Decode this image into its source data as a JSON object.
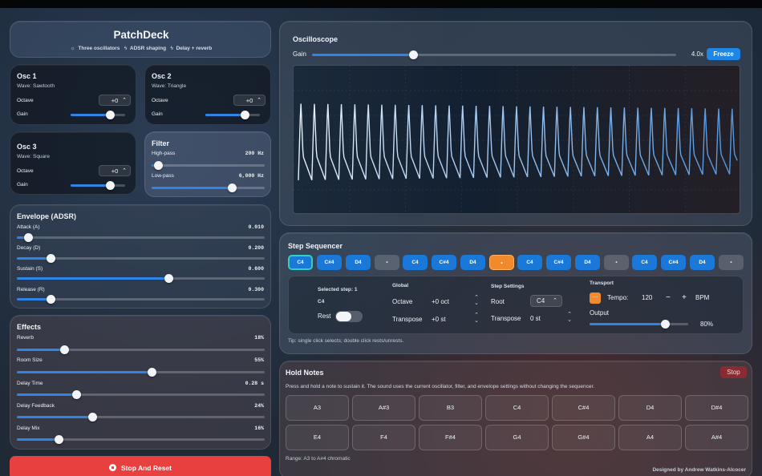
{
  "header": {
    "title": "PatchDeck",
    "features": [
      {
        "icon": "sun-icon",
        "label": "Three oscillators"
      },
      {
        "icon": "bolt-icon",
        "label": "ADSR shaping"
      },
      {
        "icon": "bolt-icon",
        "label": "Delay + reverb"
      }
    ]
  },
  "osc1": {
    "title": "Osc 1",
    "wave": "Wave: Sawtooth",
    "octave_label": "Octave",
    "octave": "+0",
    "gain_label": "Gain",
    "gain": 0.7
  },
  "osc2": {
    "title": "Osc 2",
    "wave": "Wave: Triangle",
    "octave_label": "Octave",
    "octave": "+0",
    "gain_label": "Gain",
    "gain": 0.7
  },
  "osc3": {
    "title": "Osc 3",
    "wave": "Wave: Square",
    "octave_label": "Octave",
    "octave": "+0",
    "gain_label": "Gain",
    "gain": 0.7
  },
  "filter": {
    "title": "Filter",
    "highpass_label": "High-pass",
    "highpass": "200 Hz",
    "highpass_level": 0.06,
    "lowpass_label": "Low-pass",
    "lowpass": "6,000 Hz",
    "lowpass_level": 0.71
  },
  "envelope": {
    "title": "Envelope (ADSR)",
    "attack_label": "Attack (A)",
    "attack": "0.010",
    "attack_level": 0.05,
    "decay_label": "Decay (D)",
    "decay": "0.200",
    "decay_level": 0.11,
    "sustain_label": "Sustain (S)",
    "sustain": "0.600",
    "sustain_level": 0.59,
    "release_label": "Release (R)",
    "release": "0.300",
    "release_level": 0.11
  },
  "effects": {
    "title": "Effects",
    "reverb_label": "Reverb",
    "reverb": "18%",
    "reverb_level": 0.19,
    "roomsize_label": "Room Size",
    "roomsize": "55%",
    "roomsize_level": 0.55,
    "delaytime_label": "Delay Time",
    "delaytime": "0.28 s",
    "delaytime_level": 0.24,
    "feedback_label": "Delay Feedback",
    "feedback": "24%",
    "feedback_level": 0.31,
    "mix_label": "Delay Mix",
    "mix": "16%",
    "mix_level": 0.17
  },
  "stop_reset": "Stop And Reset",
  "oscilloscope": {
    "title": "Oscilloscope",
    "gain_label": "Gain",
    "gain": "4.0x",
    "gain_level": 0.28,
    "freeze": "Freeze"
  },
  "sequencer": {
    "title": "Step Sequencer",
    "steps": [
      "C4",
      "C#4",
      "D4",
      "•",
      "C4",
      "C#4",
      "D4",
      "•",
      "C4",
      "C#4",
      "D4",
      "•",
      "C4",
      "C#4",
      "D4",
      "•"
    ],
    "selected_title": "Selected step: 1",
    "selected_note": "C4",
    "rest_label": "Rest",
    "global_title": "Global",
    "octave_label": "Octave",
    "octave": "+0 oct",
    "transpose_label": "Transpose",
    "transpose": "+0 st",
    "settings_title": "Step Settings",
    "root_label": "Root",
    "root": "C4",
    "step_transpose_label": "Transpose",
    "step_transpose": "0 st",
    "transport_title": "Transport",
    "play_icon": "…",
    "tempo_label": "Tempo:",
    "tempo": "120",
    "bpm": "BPM",
    "minus": "−",
    "plus": "+",
    "output_label": "Output",
    "output": "80%",
    "output_level": 0.8,
    "tip": "Tip: single click selects; double click rests/unrests."
  },
  "hold": {
    "title": "Hold Notes",
    "stop": "Stop",
    "description": "Press and hold a note to sustain it. The sound uses the current oscillator, filter, and envelope settings without changing the sequencer.",
    "keys": [
      "A3",
      "A#3",
      "B3",
      "C4",
      "C#4",
      "D4",
      "D#4",
      "E4",
      "F4",
      "F#4",
      "G4",
      "G#4",
      "A4",
      "A#4"
    ],
    "range": "Range: A3 to A#4 chromatic",
    "credit": "Designed by Andrew Watkins-Alcocer"
  },
  "colors": {
    "accent": "#2f84e6",
    "stop": "#e8403f",
    "active_step": "#f08a2a",
    "selected_border": "#31d0c0"
  }
}
